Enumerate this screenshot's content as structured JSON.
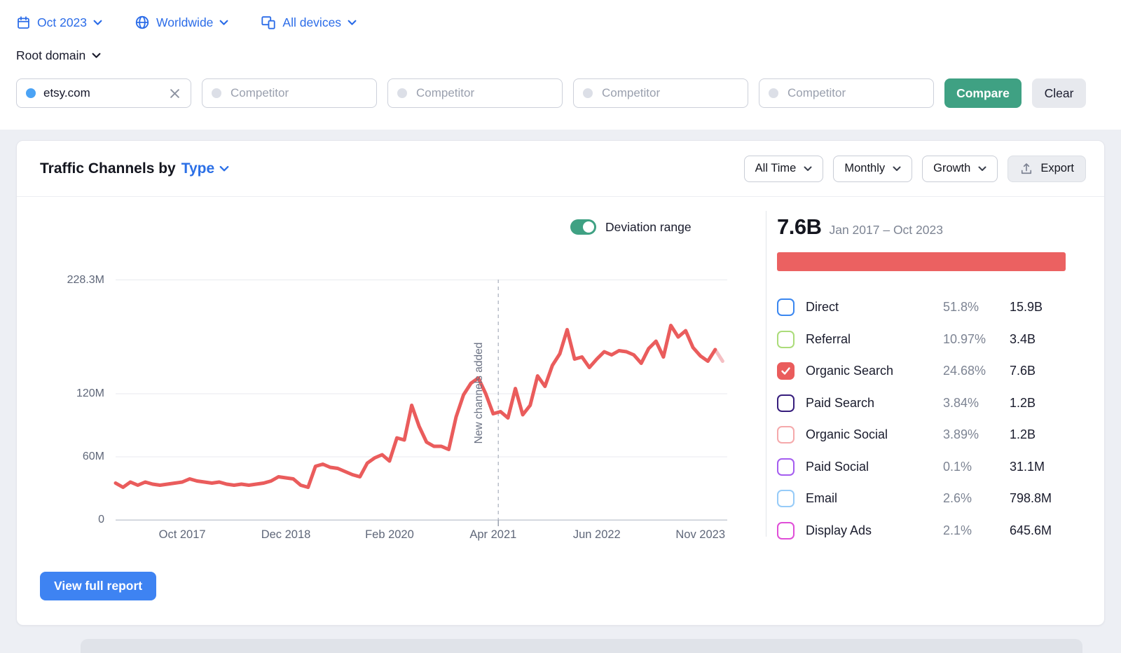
{
  "filters": {
    "date_label": "Oct 2023",
    "location_label": "Worldwide",
    "devices_label": "All devices",
    "scope_label": "Root domain"
  },
  "domain_bar": {
    "main_domain": "etsy.com",
    "competitor_placeholder": "Competitor",
    "compare_label": "Compare",
    "clear_label": "Clear"
  },
  "card": {
    "title_prefix": "Traffic Channels by",
    "title_selector": "Type",
    "time_range": "All Time",
    "granularity": "Monthly",
    "metric": "Growth",
    "export_label": "Export",
    "deviation_label": "Deviation range",
    "view_report_label": "View full report"
  },
  "summary": {
    "total": "7.6B",
    "period": "Jan 2017 – Oct 2023",
    "bar_color": "#eb6161"
  },
  "legend": [
    {
      "label": "Direct",
      "percent": "51.8%",
      "value": "15.9B",
      "color": "#3b87f0",
      "checked": false
    },
    {
      "label": "Referral",
      "percent": "10.97%",
      "value": "3.4B",
      "color": "#abdc7a",
      "checked": false
    },
    {
      "label": "Organic Search",
      "percent": "24.68%",
      "value": "7.6B",
      "color": "#ea5c5c",
      "checked": true
    },
    {
      "label": "Paid Search",
      "percent": "3.84%",
      "value": "1.2B",
      "color": "#371e7d",
      "checked": false
    },
    {
      "label": "Organic Social",
      "percent": "3.89%",
      "value": "1.2B",
      "color": "#f5a9ab",
      "checked": false
    },
    {
      "label": "Paid Social",
      "percent": "0.1%",
      "value": "31.1M",
      "color": "#a55df0",
      "checked": false
    },
    {
      "label": "Email",
      "percent": "2.6%",
      "value": "798.8M",
      "color": "#96cbf8",
      "checked": false
    },
    {
      "label": "Display Ads",
      "percent": "2.1%",
      "value": "645.6M",
      "color": "#e04ed8",
      "checked": false
    }
  ],
  "chart_data": {
    "type": "line",
    "unit": "visits per month, millions",
    "x_start": "Jan 2017",
    "x_end_solid": "Oct 2023",
    "x_end_forecast": "Nov 2023",
    "ylim": [
      0,
      228.3
    ],
    "grid": true,
    "legend_position": "right",
    "y_ticks": [
      {
        "value": 0,
        "label": "0"
      },
      {
        "value": 60,
        "label": "60M"
      },
      {
        "value": 120,
        "label": "120M"
      },
      {
        "value": 228.3,
        "label": "228.3M"
      }
    ],
    "x_ticks": [
      {
        "month_index": 9,
        "label": "Oct 2017"
      },
      {
        "month_index": 23,
        "label": "Dec 2018"
      },
      {
        "month_index": 37,
        "label": "Feb 2020"
      },
      {
        "month_index": 51,
        "label": "Apr 2021"
      },
      {
        "month_index": 65,
        "label": "Jun 2022"
      },
      {
        "month_index": 79,
        "label": "Nov 2023"
      }
    ],
    "annotation": {
      "text": "New channels added",
      "month_index": 51.7
    },
    "series": [
      {
        "name": "Organic Search",
        "color": "#ea5c5c",
        "forecast_color": "#f5bfc3",
        "forecast_points": 1,
        "values_millions": [
          35,
          31,
          36,
          33,
          36,
          34,
          33,
          34,
          35,
          36,
          39,
          37,
          36,
          35,
          36,
          34,
          33,
          34,
          33,
          34,
          35,
          37,
          41,
          40,
          39,
          33,
          31,
          51,
          53,
          50,
          49,
          46,
          43,
          41,
          54,
          59,
          62,
          56,
          78,
          76,
          109,
          89,
          74,
          70,
          70,
          67,
          98,
          119,
          130,
          135,
          120,
          101,
          103,
          97,
          125,
          100,
          109,
          137,
          127,
          147,
          158,
          181,
          153,
          155,
          145,
          153,
          160,
          157,
          161,
          160,
          157,
          149,
          163,
          170,
          155,
          185,
          174,
          180,
          164,
          156,
          151,
          162,
          151
        ]
      }
    ]
  }
}
